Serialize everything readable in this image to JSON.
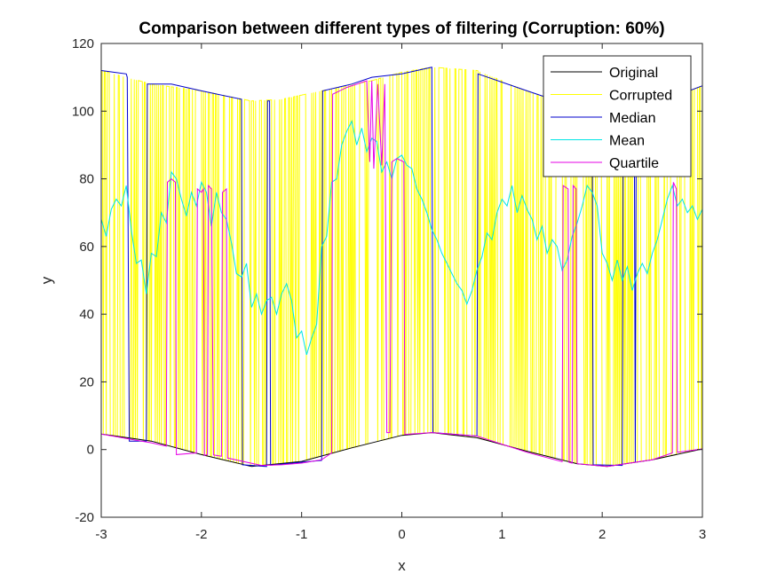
{
  "chart_data": {
    "type": "line",
    "title": "Comparison between different types of filtering (Corruption: 60%)",
    "xlabel": "x",
    "ylabel": "y",
    "xlim": [
      -3,
      3
    ],
    "ylim": [
      -20,
      120
    ],
    "xticks": [
      "-3",
      "-2",
      "-1",
      "0",
      "1",
      "2",
      "3"
    ],
    "yticks": [
      "-20",
      "0",
      "20",
      "40",
      "60",
      "80",
      "100",
      "120"
    ],
    "grid": false,
    "legend_position": "top-right",
    "series": [
      {
        "name": "Original",
        "color": "#000000",
        "baseline_function": "5*sin(x*(pi/2.5)+pi/2.8)",
        "points": [
          [
            -3,
            4.6
          ],
          [
            -2.5,
            2.5
          ],
          [
            -2,
            -1.5
          ],
          [
            -1.5,
            -5
          ],
          [
            -1,
            -3.5
          ],
          [
            -0.5,
            0.5
          ],
          [
            0,
            4.2
          ],
          [
            0.3,
            5
          ],
          [
            0.75,
            3.5
          ],
          [
            1.25,
            -0.5
          ],
          [
            1.75,
            -4.2
          ],
          [
            2.05,
            -5
          ],
          [
            2.5,
            -3
          ],
          [
            3,
            0.2
          ]
        ]
      },
      {
        "name": "Corrupted",
        "color": "#ffff00",
        "upper_envelope": [
          [
            -3,
            112
          ],
          [
            -2.5,
            108
          ],
          [
            -2,
            106
          ],
          [
            -1.5,
            103
          ],
          [
            -1.2,
            103.5
          ],
          [
            -0.8,
            106
          ],
          [
            -0.3,
            109
          ],
          [
            0,
            111.5
          ],
          [
            0.3,
            113
          ],
          [
            0.75,
            112
          ],
          [
            1.25,
            106
          ],
          [
            1.75,
            101
          ],
          [
            2.05,
            99
          ],
          [
            2.5,
            102
          ],
          [
            3,
            107.5
          ]
        ]
      },
      {
        "name": "Median",
        "color": "#0000cc",
        "points": [
          [
            -3,
            112
          ],
          [
            -2.75,
            111
          ],
          [
            -2.74,
            110
          ],
          [
            -2.72,
            2.5
          ],
          [
            -2.55,
            2.5
          ],
          [
            -2.54,
            108
          ],
          [
            -2.3,
            108
          ],
          [
            -2,
            106
          ],
          [
            -1.6,
            103.5
          ],
          [
            -1.59,
            -4.5
          ],
          [
            -1.35,
            -5
          ],
          [
            -1.34,
            103
          ],
          [
            -1.32,
            103
          ],
          [
            -1.31,
            -4.6
          ],
          [
            -0.8,
            -3.2
          ],
          [
            -0.79,
            106
          ],
          [
            -0.5,
            108
          ],
          [
            -0.3,
            110
          ],
          [
            0,
            111
          ],
          [
            0.3,
            113
          ],
          [
            0.31,
            5
          ],
          [
            0.75,
            4
          ],
          [
            0.76,
            111
          ],
          [
            1.25,
            106
          ],
          [
            1.75,
            101
          ],
          [
            1.9,
            99.5
          ],
          [
            1.91,
            -4.5
          ],
          [
            2.2,
            -4.7
          ],
          [
            2.21,
            99.5
          ],
          [
            2.32,
            99.5
          ],
          [
            2.33,
            -3.7
          ],
          [
            2.34,
            99.5
          ],
          [
            2.6,
            103
          ],
          [
            3,
            107.5
          ]
        ]
      },
      {
        "name": "Mean",
        "color": "#00e5e5",
        "points": [
          [
            -3,
            68
          ],
          [
            -2.95,
            63
          ],
          [
            -2.9,
            71
          ],
          [
            -2.85,
            74
          ],
          [
            -2.8,
            72
          ],
          [
            -2.75,
            78
          ],
          [
            -2.7,
            65
          ],
          [
            -2.65,
            55
          ],
          [
            -2.6,
            56
          ],
          [
            -2.55,
            46
          ],
          [
            -2.5,
            58
          ],
          [
            -2.45,
            57
          ],
          [
            -2.4,
            70
          ],
          [
            -2.35,
            67
          ],
          [
            -2.3,
            82
          ],
          [
            -2.25,
            80
          ],
          [
            -2.2,
            74
          ],
          [
            -2.15,
            69
          ],
          [
            -2.1,
            76
          ],
          [
            -2.05,
            72
          ],
          [
            -2,
            79
          ],
          [
            -1.95,
            76
          ],
          [
            -1.9,
            66
          ],
          [
            -1.85,
            76
          ],
          [
            -1.8,
            70
          ],
          [
            -1.75,
            68
          ],
          [
            -1.7,
            61
          ],
          [
            -1.65,
            52
          ],
          [
            -1.6,
            51
          ],
          [
            -1.55,
            55
          ],
          [
            -1.5,
            42
          ],
          [
            -1.45,
            46
          ],
          [
            -1.4,
            40
          ],
          [
            -1.35,
            44
          ],
          [
            -1.3,
            45
          ],
          [
            -1.25,
            40
          ],
          [
            -1.2,
            46
          ],
          [
            -1.15,
            49
          ],
          [
            -1.1,
            44
          ],
          [
            -1.05,
            33
          ],
          [
            -1,
            35
          ],
          [
            -0.95,
            28
          ],
          [
            -0.9,
            33
          ],
          [
            -0.85,
            37
          ],
          [
            -0.8,
            60
          ],
          [
            -0.75,
            63
          ],
          [
            -0.7,
            79
          ],
          [
            -0.65,
            80
          ],
          [
            -0.6,
            90
          ],
          [
            -0.55,
            94
          ],
          [
            -0.5,
            97
          ],
          [
            -0.45,
            90
          ],
          [
            -0.4,
            95
          ],
          [
            -0.35,
            88
          ],
          [
            -0.3,
            92
          ],
          [
            -0.25,
            91
          ],
          [
            -0.2,
            82
          ],
          [
            -0.15,
            85
          ],
          [
            -0.1,
            80
          ],
          [
            -0.05,
            86
          ],
          [
            0,
            87
          ],
          [
            0.05,
            84
          ],
          [
            0.1,
            83
          ],
          [
            0.15,
            77
          ],
          [
            0.2,
            74
          ],
          [
            0.25,
            70
          ],
          [
            0.3,
            65
          ],
          [
            0.35,
            62
          ],
          [
            0.4,
            58
          ],
          [
            0.45,
            55
          ],
          [
            0.5,
            52
          ],
          [
            0.55,
            49
          ],
          [
            0.6,
            47
          ],
          [
            0.65,
            43
          ],
          [
            0.7,
            47
          ],
          [
            0.75,
            53
          ],
          [
            0.8,
            57
          ],
          [
            0.85,
            64
          ],
          [
            0.9,
            62
          ],
          [
            0.95,
            70
          ],
          [
            1,
            74
          ],
          [
            1.05,
            72
          ],
          [
            1.1,
            78
          ],
          [
            1.15,
            70
          ],
          [
            1.2,
            75
          ],
          [
            1.25,
            71
          ],
          [
            1.3,
            68
          ],
          [
            1.35,
            62
          ],
          [
            1.4,
            66
          ],
          [
            1.45,
            58
          ],
          [
            1.5,
            62
          ],
          [
            1.55,
            60
          ],
          [
            1.6,
            53
          ],
          [
            1.65,
            56
          ],
          [
            1.7,
            63
          ],
          [
            1.75,
            67
          ],
          [
            1.8,
            72
          ],
          [
            1.85,
            78
          ],
          [
            1.9,
            76
          ],
          [
            1.95,
            72
          ],
          [
            2,
            58
          ],
          [
            2.05,
            55
          ],
          [
            2.1,
            50
          ],
          [
            2.15,
            56
          ],
          [
            2.2,
            50
          ],
          [
            2.25,
            54
          ],
          [
            2.3,
            47
          ],
          [
            2.35,
            52
          ],
          [
            2.4,
            55
          ],
          [
            2.45,
            52
          ],
          [
            2.5,
            58
          ],
          [
            2.55,
            62
          ],
          [
            2.6,
            68
          ],
          [
            2.65,
            74
          ],
          [
            2.7,
            78
          ],
          [
            2.75,
            72
          ],
          [
            2.8,
            74
          ],
          [
            2.85,
            70
          ],
          [
            2.9,
            72
          ],
          [
            2.95,
            68
          ],
          [
            3,
            71
          ]
        ]
      },
      {
        "name": "Quartile",
        "color": "#e600e6",
        "points": [
          [
            -3,
            4.6
          ],
          [
            -2.7,
            3
          ],
          [
            -2.5,
            2
          ],
          [
            -2.35,
            1
          ],
          [
            -2.34,
            79
          ],
          [
            -2.3,
            80
          ],
          [
            -2.26,
            79
          ],
          [
            -2.25,
            -1.5
          ],
          [
            -2.05,
            -1
          ],
          [
            -2.04,
            77
          ],
          [
            -2,
            76
          ],
          [
            -1.98,
            77
          ],
          [
            -1.97,
            -1.7
          ],
          [
            -1.94,
            -1.5
          ],
          [
            -1.93,
            78
          ],
          [
            -1.9,
            77
          ],
          [
            -1.88,
            -1.6
          ],
          [
            -1.8,
            -2
          ],
          [
            -1.79,
            76
          ],
          [
            -1.75,
            77
          ],
          [
            -1.74,
            -2.5
          ],
          [
            -1.4,
            -4.7
          ],
          [
            -1.2,
            -4.5
          ],
          [
            -1,
            -4
          ],
          [
            -0.8,
            -3
          ],
          [
            -0.7,
            -1
          ],
          [
            -0.69,
            105
          ],
          [
            -0.55,
            107
          ],
          [
            -0.35,
            109
          ],
          [
            -0.32,
            85
          ],
          [
            -0.3,
            109
          ],
          [
            -0.28,
            83
          ],
          [
            -0.24,
            108
          ],
          [
            -0.2,
            84
          ],
          [
            -0.17,
            108
          ],
          [
            -0.15,
            5
          ],
          [
            -0.12,
            5
          ],
          [
            -0.1,
            85
          ],
          [
            -0.05,
            86
          ],
          [
            0.02,
            85
          ],
          [
            0.03,
            4.5
          ],
          [
            0.3,
            5
          ],
          [
            0.75,
            4
          ],
          [
            1.25,
            -0.8
          ],
          [
            1.6,
            -3.6
          ],
          [
            1.61,
            78
          ],
          [
            1.66,
            77
          ],
          [
            1.67,
            -3.8
          ],
          [
            1.7,
            -4
          ],
          [
            1.71,
            78
          ],
          [
            1.74,
            77
          ],
          [
            1.75,
            -4.2
          ],
          [
            2.05,
            -5
          ],
          [
            2.5,
            -3
          ],
          [
            2.7,
            -1
          ],
          [
            2.71,
            79
          ],
          [
            2.74,
            77
          ],
          [
            2.75,
            -0.8
          ],
          [
            3,
            0.2
          ]
        ]
      }
    ]
  }
}
